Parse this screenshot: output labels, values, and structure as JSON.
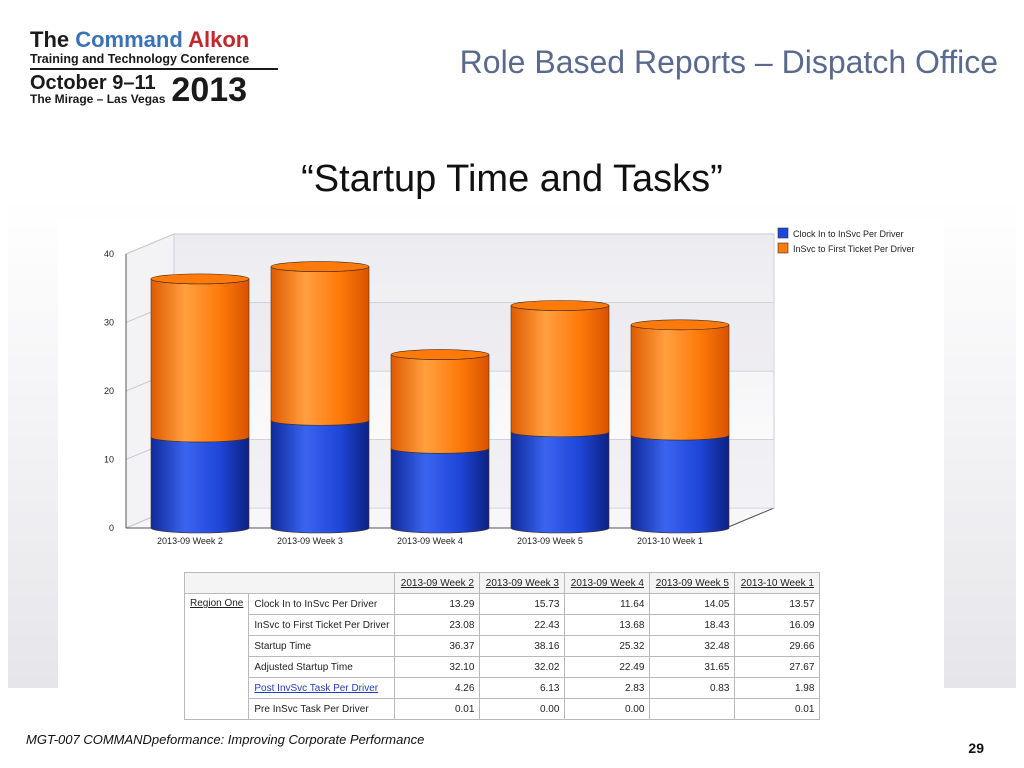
{
  "logo": {
    "line1_pre": "The ",
    "line1_command": "Command",
    "line1_alkon": " Alkon",
    "line2": "Training and Technology Conference",
    "line3": "October 9–11",
    "line4": "The Mirage – Las Vegas",
    "year": "2013"
  },
  "slide_title": "Role Based Reports – Dispatch Office",
  "subtitle": "“Startup Time and Tasks”",
  "colors": {
    "series1": "#1e46d8",
    "series2": "#ff7a0a",
    "title": "#5a6a8e"
  },
  "chart_data": {
    "type": "bar",
    "stacked": true,
    "title": "",
    "xlabel": "",
    "ylabel": "",
    "ylim": [
      0,
      40
    ],
    "yticks": [
      0,
      10,
      20,
      30,
      40
    ],
    "grid": true,
    "legend_position": "top-right",
    "categories": [
      "2013-09 Week 2",
      "2013-09 Week 3",
      "2013-09 Week 4",
      "2013-09 Week 5",
      "2013-10 Week 1"
    ],
    "series": [
      {
        "name": "Clock In to InSvc Per Driver",
        "values": [
          13.29,
          15.73,
          11.64,
          14.05,
          13.57
        ]
      },
      {
        "name": "InSvc to First Ticket Per Driver",
        "values": [
          23.08,
          22.43,
          13.68,
          18.43,
          16.09
        ]
      }
    ]
  },
  "table": {
    "columns": [
      "2013-09 Week 2",
      "2013-09 Week 3",
      "2013-09 Week 4",
      "2013-09 Week 5",
      "2013-10 Week 1"
    ],
    "region": "Region One",
    "rows": [
      {
        "label": "Clock In to InSvc Per Driver",
        "values": [
          "13.29",
          "15.73",
          "11.64",
          "14.05",
          "13.57"
        ]
      },
      {
        "label": "InSvc to First Ticket Per Driver",
        "values": [
          "23.08",
          "22.43",
          "13.68",
          "18.43",
          "16.09"
        ]
      },
      {
        "label": "Startup Time",
        "values": [
          "36.37",
          "38.16",
          "25.32",
          "32.48",
          "29.66"
        ]
      },
      {
        "label": "Adjusted Startup Time",
        "values": [
          "32.10",
          "32.02",
          "22.49",
          "31.65",
          "27.67"
        ]
      },
      {
        "label": "Post InvSvc Task Per Driver",
        "values": [
          "4.26",
          "6.13",
          "2.83",
          "0.83",
          "1.98"
        ]
      },
      {
        "label": "Pre InSvc Task Per Driver",
        "values": [
          "0.01",
          "0.00",
          "0.00",
          "",
          "0.01"
        ]
      }
    ]
  },
  "footer": "MGT-007 COMMANDpeformance: Improving Corporate Performance",
  "page_number": "29"
}
